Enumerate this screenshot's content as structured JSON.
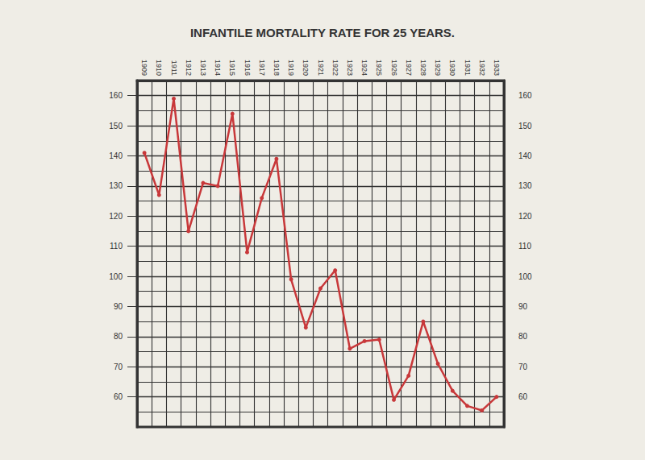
{
  "chart_data": {
    "type": "line",
    "title": "INFANTILE MORTALITY RATE FOR 25 YEARS.",
    "categories": [
      "1909",
      "1910",
      "1911",
      "1912",
      "1913",
      "1914",
      "1915",
      "1916",
      "1917",
      "1918",
      "1919",
      "1920",
      "1921",
      "1922",
      "1923",
      "1924",
      "1925",
      "1926",
      "1927",
      "1928",
      "1929",
      "1930",
      "1931",
      "1932",
      "1933"
    ],
    "values": [
      141,
      127,
      159,
      115,
      131,
      130,
      154,
      108,
      126,
      139,
      99,
      83,
      96,
      102,
      76,
      78.5,
      79,
      59,
      67,
      85,
      71,
      62,
      57,
      55.5,
      60
    ],
    "color": "#c8383a",
    "marker": "circle",
    "line_style": "solid",
    "ylim": [
      50,
      165
    ],
    "yticks": [
      60,
      70,
      80,
      90,
      100,
      110,
      120,
      130,
      140,
      150,
      160
    ],
    "grid": true
  }
}
